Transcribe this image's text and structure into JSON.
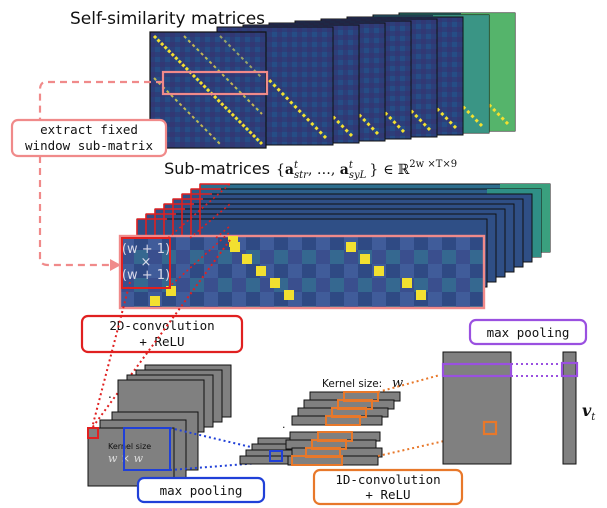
{
  "title": "Self-similarity matrices",
  "submatrix_label": {
    "prefix": "Sub-matrices",
    "formula": "{aₜₛₜᵣ , …, aₜₛᵧʟ } ∈ ℝ²ʷ ˣᵀˣ⁹",
    "set_open": "{",
    "a1": "a",
    "a1_sup": "t",
    "a1_sub": "str",
    "ellipsis": ", …, ",
    "a2": "a",
    "a2_sup": "t",
    "a2_sub": "syL",
    "set_close": "}",
    "in": "∈",
    "reals": "ℝ",
    "dims": "2w ×T×9"
  },
  "extract_box": {
    "line1": "extract fixed",
    "line2": "window sub-matrix"
  },
  "window_size": {
    "line1": "(w + 1)",
    "line2": "×",
    "line3": "(w + 1)"
  },
  "conv2d_box": {
    "line1": "2D-convolution",
    "line2": "+ ReLU"
  },
  "kernel2d": {
    "line1": "Kernel size",
    "line2": "w × w"
  },
  "maxpool_left": "max pooling",
  "kernel1d": {
    "label": "Kernel size:",
    "var": "w"
  },
  "conv1d_box": {
    "line1": "1D-convolution",
    "line2": "+ ReLU"
  },
  "maxpool_right": "max pooling",
  "output_vector": {
    "symbol": "v",
    "sub": "t"
  },
  "colors": {
    "red": "#e02020",
    "pink": "#f08a8a",
    "orange": "#e8782a",
    "blue": "#2040d8",
    "purple": "#9a50e0",
    "gray_fill": "#808080",
    "viridis_dark": "#3b2a70",
    "viridis_mid": "#2a7f8e",
    "viridis_yellow": "#f2e030"
  }
}
